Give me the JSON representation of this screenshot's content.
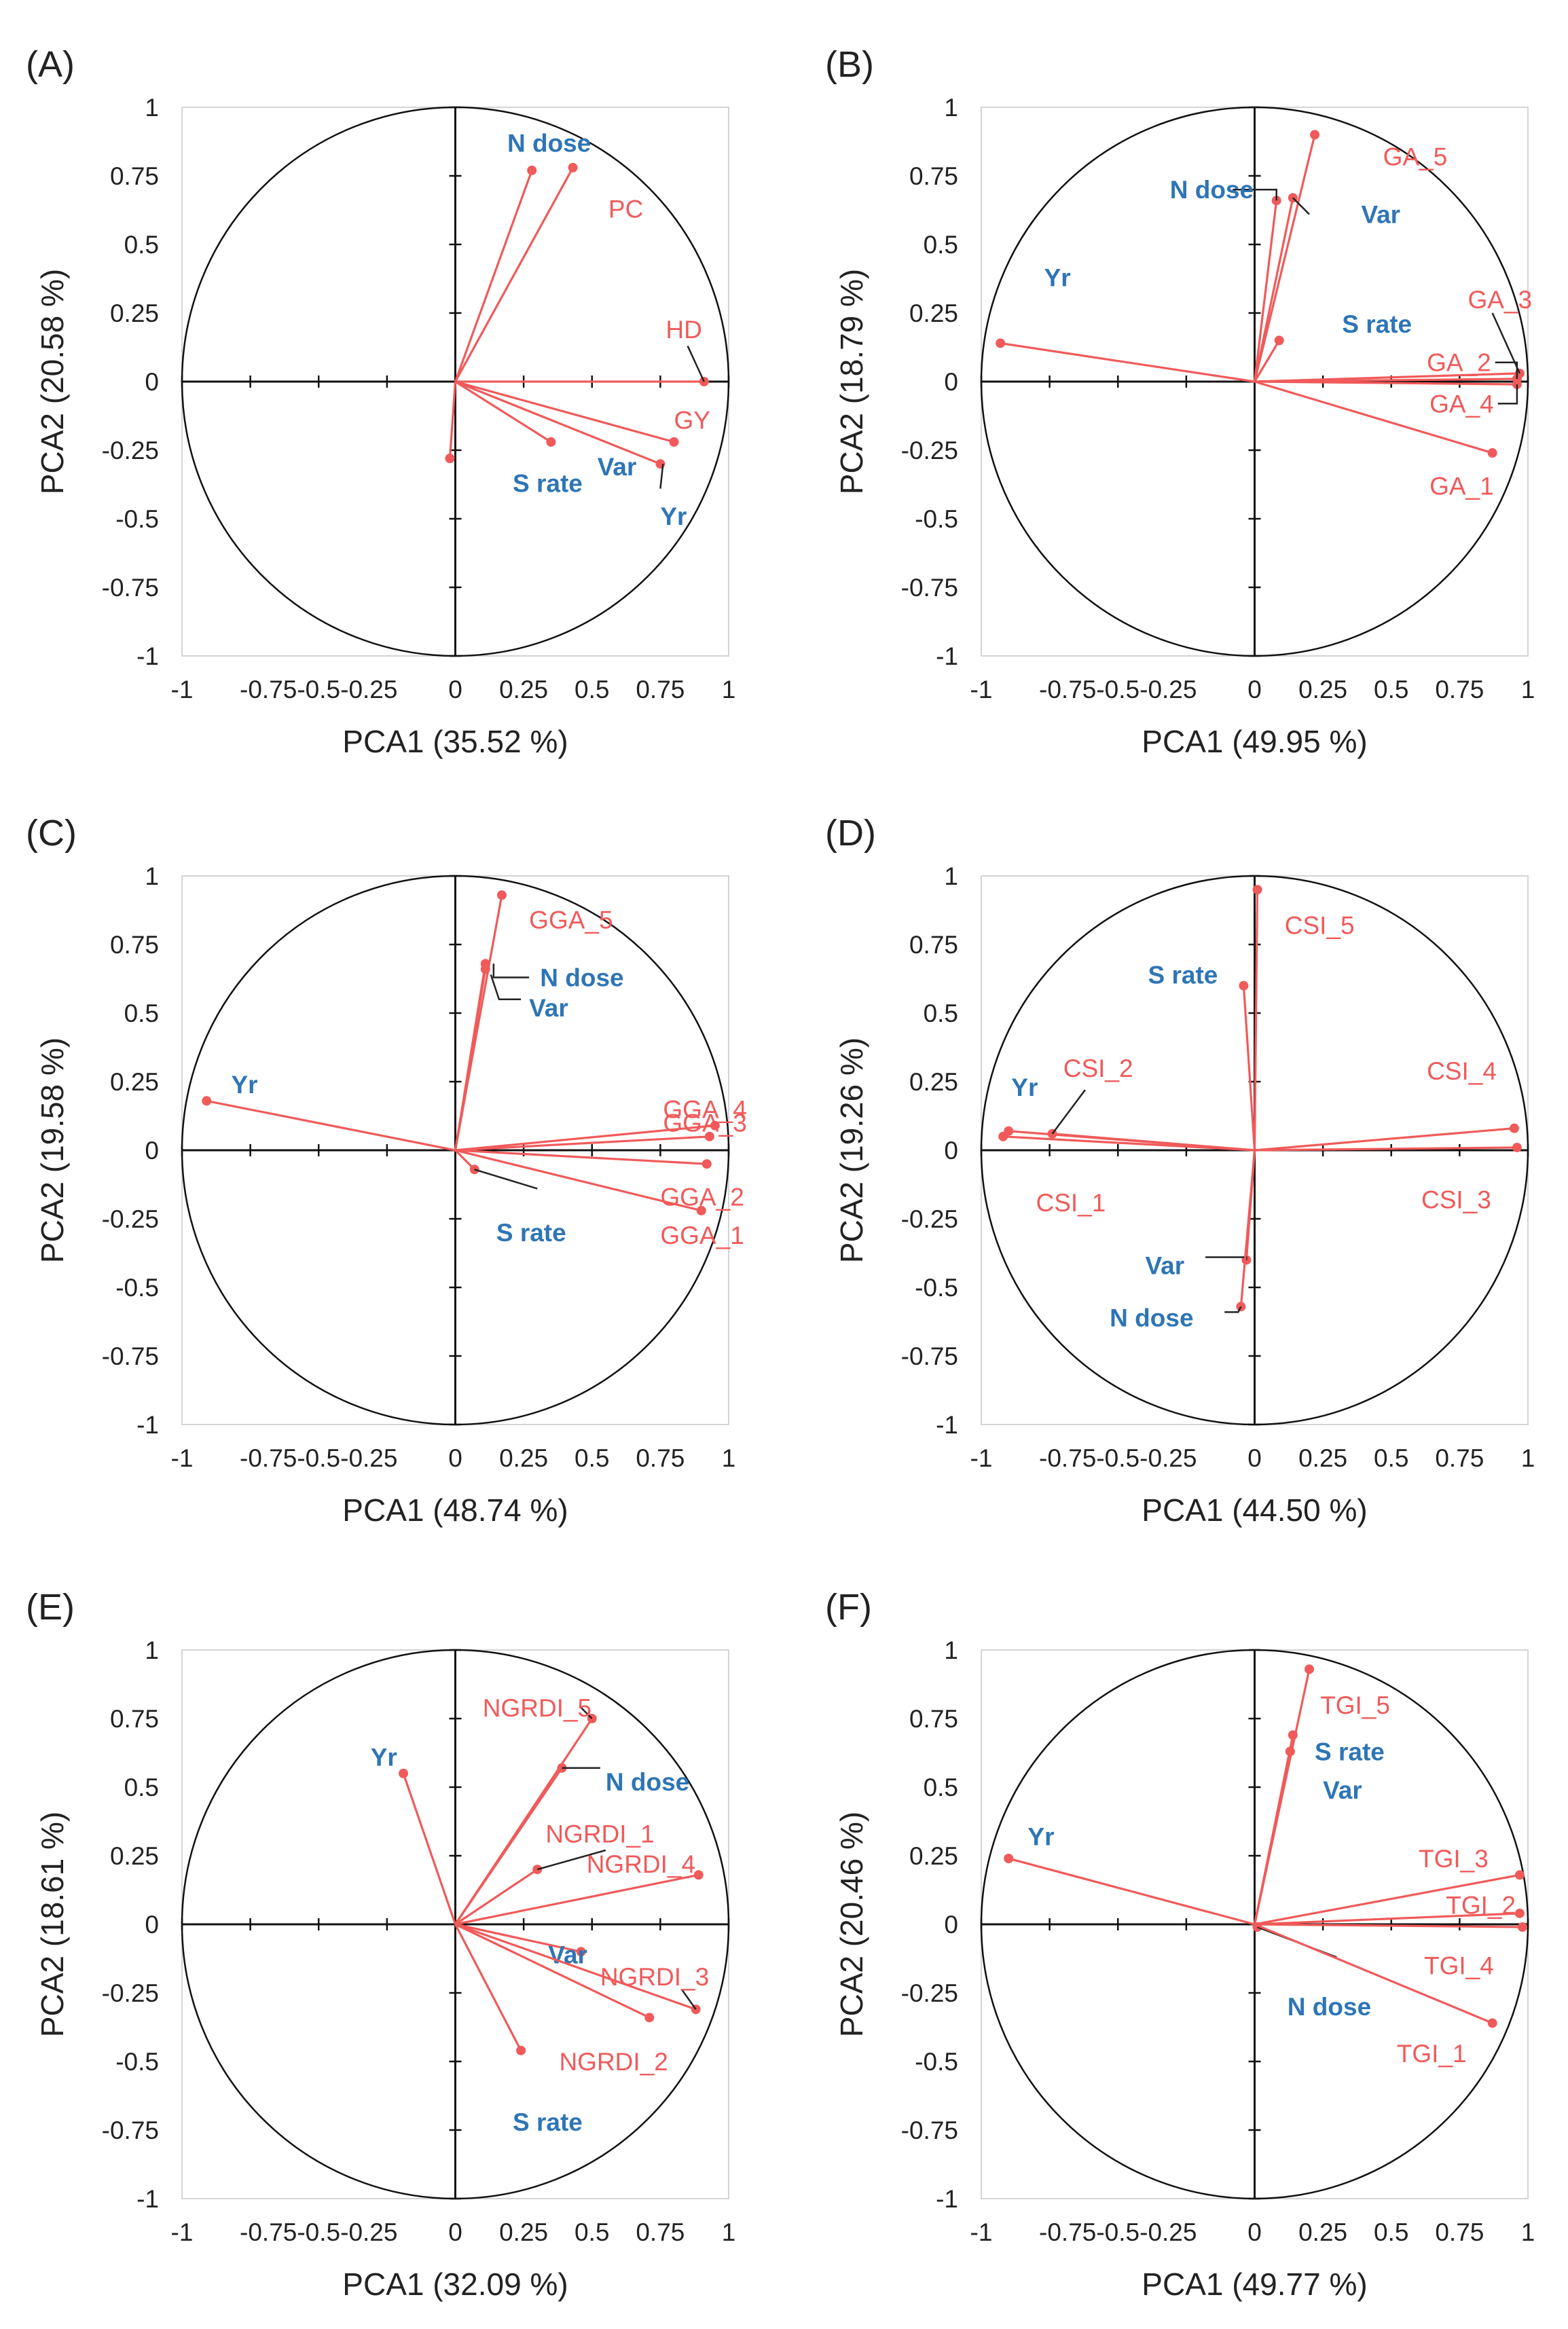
{
  "colors": {
    "trait": "#f05a5a",
    "factor": "#2e75b6",
    "axis": "#111111",
    "leader": "#222222"
  },
  "axis_ticks": [
    "-1",
    "-0.75",
    "-0.5",
    "-0.25",
    "0",
    "0.25",
    "0.5",
    "0.75",
    "1"
  ],
  "axis_tick_values": [
    -1,
    -0.75,
    -0.5,
    -0.25,
    0,
    0.25,
    0.5,
    0.75,
    1
  ],
  "chart_data": [
    {
      "type": "scatter",
      "panel": "(A)",
      "xlabel": "PCA1 (35.52 %)",
      "ylabel": "PCA2 (20.58 %)",
      "xlim": [
        -1,
        1
      ],
      "ylim": [
        -1,
        1
      ],
      "xticks": [
        "-1",
        "-0.75-0.5-0.25",
        "0",
        "0.25",
        "0.5",
        "0.75",
        "1"
      ],
      "yticks": [
        "1",
        "0.75",
        "0.5",
        "0.25",
        "0",
        "-0.25",
        "-0.5",
        "-0.75",
        "-1"
      ],
      "vectors": [
        {
          "label": "N dose",
          "group": "factor",
          "x": 0.28,
          "y": 0.77,
          "lx": 0.19,
          "ly": 0.87
        },
        {
          "label": "PC",
          "group": "trait",
          "x": 0.43,
          "y": 0.78,
          "lx": 0.56,
          "ly": 0.63
        },
        {
          "label": "HD",
          "group": "trait",
          "x": 0.91,
          "y": 0.0,
          "lx": 0.77,
          "ly": 0.19,
          "leader": [
            [
              0.85,
              0.13
            ],
            [
              0.91,
              0.0
            ]
          ]
        },
        {
          "label": "GY",
          "group": "trait",
          "x": 0.8,
          "y": -0.22,
          "lx": 0.8,
          "ly": -0.14
        },
        {
          "label": "Var",
          "group": "factor",
          "x": 0.35,
          "y": -0.22,
          "lx": 0.52,
          "ly": -0.31
        },
        {
          "label": "Yr",
          "group": "factor",
          "x": 0.75,
          "y": -0.3,
          "lx": 0.75,
          "ly": -0.49,
          "leader": [
            [
              0.76,
              -0.3
            ],
            [
              0.75,
              -0.39
            ]
          ]
        },
        {
          "label": "S rate",
          "group": "factor",
          "x": -0.02,
          "y": -0.28,
          "lx": 0.21,
          "ly": -0.37
        }
      ]
    },
    {
      "type": "scatter",
      "panel": "(B)",
      "xlabel": "PCA1 (49.95 %)",
      "ylabel": "PCA2 (18.79 %)",
      "xlim": [
        -1,
        1
      ],
      "ylim": [
        -1,
        1
      ],
      "xticks": [
        "-1",
        "-0.75-0.5-0.25",
        "0",
        "0.25",
        "0.5",
        "0.75",
        "1"
      ],
      "yticks": [
        "1",
        "0.75",
        "0.5",
        "0.25",
        "0",
        "-0.25",
        "-0.5",
        "-0.75",
        "-1"
      ],
      "vectors": [
        {
          "label": "GA_5",
          "group": "trait",
          "x": 0.22,
          "y": 0.9,
          "lx": 0.47,
          "ly": 0.82
        },
        {
          "label": "Var",
          "group": "factor",
          "x": 0.14,
          "y": 0.67,
          "lx": 0.39,
          "ly": 0.61,
          "leader": [
            [
              0.14,
              0.67
            ],
            [
              0.2,
              0.61
            ]
          ]
        },
        {
          "label": "N dose",
          "group": "factor",
          "x": 0.08,
          "y": 0.66,
          "lx": -0.31,
          "ly": 0.7,
          "leader": [
            [
              -0.08,
              0.7
            ],
            [
              0.08,
              0.7
            ],
            [
              0.08,
              0.66
            ]
          ]
        },
        {
          "label": "S rate",
          "group": "factor",
          "x": 0.09,
          "y": 0.15,
          "lx": 0.32,
          "ly": 0.21
        },
        {
          "label": "Yr",
          "group": "factor",
          "x": -0.93,
          "y": 0.14,
          "lx": -0.77,
          "ly": 0.38
        },
        {
          "label": "GA_3",
          "group": "trait",
          "x": 0.97,
          "y": 0.03,
          "lx": 0.78,
          "ly": 0.3,
          "leader": [
            [
              0.87,
              0.25
            ],
            [
              0.97,
              0.03
            ]
          ]
        },
        {
          "label": "GA_2",
          "group": "trait",
          "x": 0.96,
          "y": 0.01,
          "lx": 0.63,
          "ly": 0.07,
          "leader": [
            [
              0.88,
              0.07
            ],
            [
              0.96,
              0.07
            ],
            [
              0.96,
              0.01
            ]
          ]
        },
        {
          "label": "GA_4",
          "group": "trait",
          "x": 0.96,
          "y": -0.01,
          "lx": 0.64,
          "ly": -0.08,
          "leader": [
            [
              0.89,
              -0.08
            ],
            [
              0.96,
              -0.08
            ],
            [
              0.96,
              -0.01
            ]
          ]
        },
        {
          "label": "GA_1",
          "group": "trait",
          "x": 0.87,
          "y": -0.26,
          "lx": 0.64,
          "ly": -0.38
        }
      ]
    },
    {
      "type": "scatter",
      "panel": "(C)",
      "xlabel": "PCA1 (48.74 %)",
      "ylabel": "PCA2 (19.58 %)",
      "xlim": [
        -1,
        1
      ],
      "ylim": [
        -1,
        1
      ],
      "xticks": [
        "-1",
        "-0.75-0.5-0.25",
        "0",
        "0.25",
        "0.5",
        "0.75",
        "1"
      ],
      "yticks": [
        "1",
        "0.75",
        "0.5",
        "0.25",
        "0",
        "-0.25",
        "-0.5",
        "-0.75",
        "-1"
      ],
      "vectors": [
        {
          "label": "GGA_5",
          "group": "trait",
          "x": 0.17,
          "y": 0.93,
          "lx": 0.27,
          "ly": 0.84
        },
        {
          "label": "N dose",
          "group": "factor",
          "x": 0.11,
          "y": 0.68,
          "lx": 0.31,
          "ly": 0.63,
          "leader": [
            [
              0.27,
              0.63
            ],
            [
              0.14,
              0.63
            ],
            [
              0.14,
              0.68
            ]
          ]
        },
        {
          "label": "Var",
          "group": "factor",
          "x": 0.11,
          "y": 0.66,
          "lx": 0.27,
          "ly": 0.52,
          "leader": [
            [
              0.24,
              0.55
            ],
            [
              0.16,
              0.55
            ],
            [
              0.13,
              0.64
            ]
          ]
        },
        {
          "label": "Yr",
          "group": "factor",
          "x": -0.91,
          "y": 0.18,
          "lx": -0.82,
          "ly": 0.24
        },
        {
          "label": "GGA_4",
          "group": "trait",
          "x": 0.95,
          "y": 0.09,
          "lx": 0.76,
          "ly": 0.15
        },
        {
          "label": "GGA_3",
          "group": "trait",
          "x": 0.93,
          "y": 0.05,
          "lx": 0.76,
          "ly": 0.1
        },
        {
          "label": "GGA_2",
          "group": "trait",
          "x": 0.92,
          "y": -0.05,
          "lx": 0.75,
          "ly": -0.17
        },
        {
          "label": "GGA_1",
          "group": "trait",
          "x": 0.9,
          "y": -0.22,
          "lx": 0.75,
          "ly": -0.31
        },
        {
          "label": "S rate",
          "group": "factor",
          "x": 0.07,
          "y": -0.07,
          "lx": 0.15,
          "ly": -0.3,
          "leader": [
            [
              0.07,
              -0.07
            ],
            [
              0.3,
              -0.14
            ]
          ]
        }
      ]
    },
    {
      "type": "scatter",
      "panel": "(D)",
      "xlabel": "PCA1 (44.50 %)",
      "ylabel": "PCA2 (19.26 %)",
      "xlim": [
        -1,
        1
      ],
      "ylim": [
        -1,
        1
      ],
      "xticks": [
        "-1",
        "-0.75-0.5-0.25",
        "0",
        "0.25",
        "0.5",
        "0.75",
        "1"
      ],
      "yticks": [
        "1",
        "0.75",
        "0.5",
        "0.25",
        "0",
        "-0.25",
        "-0.5",
        "-0.75",
        "-1"
      ],
      "vectors": [
        {
          "label": "CSI_5",
          "group": "trait",
          "x": 0.01,
          "y": 0.95,
          "lx": 0.11,
          "ly": 0.82
        },
        {
          "label": "S rate",
          "group": "factor",
          "x": -0.04,
          "y": 0.6,
          "lx": -0.39,
          "ly": 0.64
        },
        {
          "label": "Yr",
          "group": "factor",
          "x": -0.9,
          "y": 0.07,
          "lx": -0.89,
          "ly": 0.23
        },
        {
          "label": "CSI_2",
          "group": "trait",
          "x": -0.74,
          "y": 0.06,
          "lx": -0.7,
          "ly": 0.3,
          "leader": [
            [
              -0.74,
              0.06
            ],
            [
              -0.62,
              0.22
            ]
          ]
        },
        {
          "label": "CSI_4",
          "group": "trait",
          "x": 0.95,
          "y": 0.08,
          "lx": 0.63,
          "ly": 0.29
        },
        {
          "label": "CSI_3",
          "group": "trait",
          "x": 0.96,
          "y": 0.01,
          "lx": 0.61,
          "ly": -0.18
        },
        {
          "label": "CSI_1",
          "group": "trait",
          "x": -0.92,
          "y": 0.05,
          "lx": -0.8,
          "ly": -0.19
        },
        {
          "label": "Var",
          "group": "factor",
          "x": -0.03,
          "y": -0.4,
          "lx": -0.4,
          "ly": -0.42,
          "leader": [
            [
              -0.18,
              -0.39
            ],
            [
              -0.03,
              -0.39
            ],
            [
              -0.03,
              -0.4
            ]
          ]
        },
        {
          "label": "N dose",
          "group": "factor",
          "x": -0.05,
          "y": -0.57,
          "lx": -0.53,
          "ly": -0.61,
          "leader": [
            [
              -0.11,
              -0.59
            ],
            [
              -0.06,
              -0.59
            ],
            [
              -0.05,
              -0.57
            ]
          ]
        }
      ]
    },
    {
      "type": "scatter",
      "panel": "(E)",
      "xlabel": "PCA1 (32.09 %)",
      "ylabel": "PCA2 (18.61 %)",
      "xlim": [
        -1,
        1
      ],
      "ylim": [
        -1,
        1
      ],
      "xticks": [
        "-1",
        "-0.75-0.5-0.25",
        "0",
        "0.25",
        "0.5",
        "0.75",
        "1"
      ],
      "yticks": [
        "1",
        "0.75",
        "0.5",
        "0.25",
        "0",
        "-0.25",
        "-0.5",
        "-0.75",
        "-1"
      ],
      "vectors": [
        {
          "label": "NGRDI_5",
          "group": "trait",
          "x": 0.5,
          "y": 0.75,
          "lx": 0.1,
          "ly": 0.79,
          "leader": [
            [
              0.46,
              0.79
            ],
            [
              0.5,
              0.75
            ]
          ]
        },
        {
          "label": "Yr",
          "group": "factor",
          "x": -0.19,
          "y": 0.55,
          "lx": -0.31,
          "ly": 0.61
        },
        {
          "label": "N dose",
          "group": "factor",
          "x": 0.39,
          "y": 0.57,
          "lx": 0.55,
          "ly": 0.52,
          "leader": [
            [
              0.39,
              0.57
            ],
            [
              0.53,
              0.57
            ]
          ]
        },
        {
          "label": "NGRDI_1",
          "group": "trait",
          "x": 0.3,
          "y": 0.2,
          "lx": 0.33,
          "ly": 0.33,
          "leader": [
            [
              0.3,
              0.2
            ],
            [
              0.55,
              0.27
            ]
          ]
        },
        {
          "label": "NGRDI_4",
          "group": "trait",
          "x": 0.89,
          "y": 0.18,
          "lx": 0.48,
          "ly": 0.22
        },
        {
          "label": "Var",
          "group": "factor",
          "x": 0.46,
          "y": -0.1,
          "lx": 0.34,
          "ly": -0.11
        },
        {
          "label": "NGRDI_3",
          "group": "trait",
          "x": 0.88,
          "y": -0.31,
          "lx": 0.53,
          "ly": -0.19,
          "leader": [
            [
              0.83,
              -0.24
            ],
            [
              0.88,
              -0.31
            ]
          ]
        },
        {
          "label": "NGRDI_2",
          "group": "trait",
          "x": 0.71,
          "y": -0.34,
          "lx": 0.38,
          "ly": -0.5
        },
        {
          "label": "S rate",
          "group": "factor",
          "x": 0.24,
          "y": -0.46,
          "lx": 0.21,
          "ly": -0.72
        }
      ]
    },
    {
      "type": "scatter",
      "panel": "(F)",
      "xlabel": "PCA1 (49.77 %)",
      "ylabel": "PCA2 (20.46 %)",
      "xlim": [
        -1,
        1
      ],
      "ylim": [
        -1,
        1
      ],
      "xticks": [
        "-1",
        "-0.75-0.5-0.25",
        "0",
        "0.25",
        "0.5",
        "0.75",
        "1"
      ],
      "yticks": [
        "1",
        "0.75",
        "0.5",
        "0.25",
        "0",
        "-0.25",
        "-0.5",
        "-0.75",
        "-1"
      ],
      "vectors": [
        {
          "label": "TGI_5",
          "group": "trait",
          "x": 0.2,
          "y": 0.93,
          "lx": 0.24,
          "ly": 0.8
        },
        {
          "label": "S rate",
          "group": "factor",
          "x": 0.14,
          "y": 0.69,
          "lx": 0.22,
          "ly": 0.63
        },
        {
          "label": "Var",
          "group": "factor",
          "x": 0.13,
          "y": 0.63,
          "lx": 0.25,
          "ly": 0.49
        },
        {
          "label": "Yr",
          "group": "factor",
          "x": -0.9,
          "y": 0.24,
          "lx": -0.83,
          "ly": 0.32
        },
        {
          "label": "TGI_3",
          "group": "trait",
          "x": 0.97,
          "y": 0.18,
          "lx": 0.6,
          "ly": 0.24
        },
        {
          "label": "TGI_2",
          "group": "trait",
          "x": 0.97,
          "y": 0.04,
          "lx": 0.7,
          "ly": 0.07
        },
        {
          "label": "TGI_4",
          "group": "trait",
          "x": 0.98,
          "y": -0.01,
          "lx": 0.62,
          "ly": -0.15
        },
        {
          "label": "N dose",
          "group": "factor",
          "x": 0.01,
          "y": -0.01,
          "lx": 0.12,
          "ly": -0.3,
          "leader": [
            [
              0.01,
              -0.01
            ],
            [
              0.3,
              -0.12
            ]
          ]
        },
        {
          "label": "TGI_1",
          "group": "trait",
          "x": 0.87,
          "y": -0.36,
          "lx": 0.52,
          "ly": -0.47
        }
      ]
    }
  ]
}
